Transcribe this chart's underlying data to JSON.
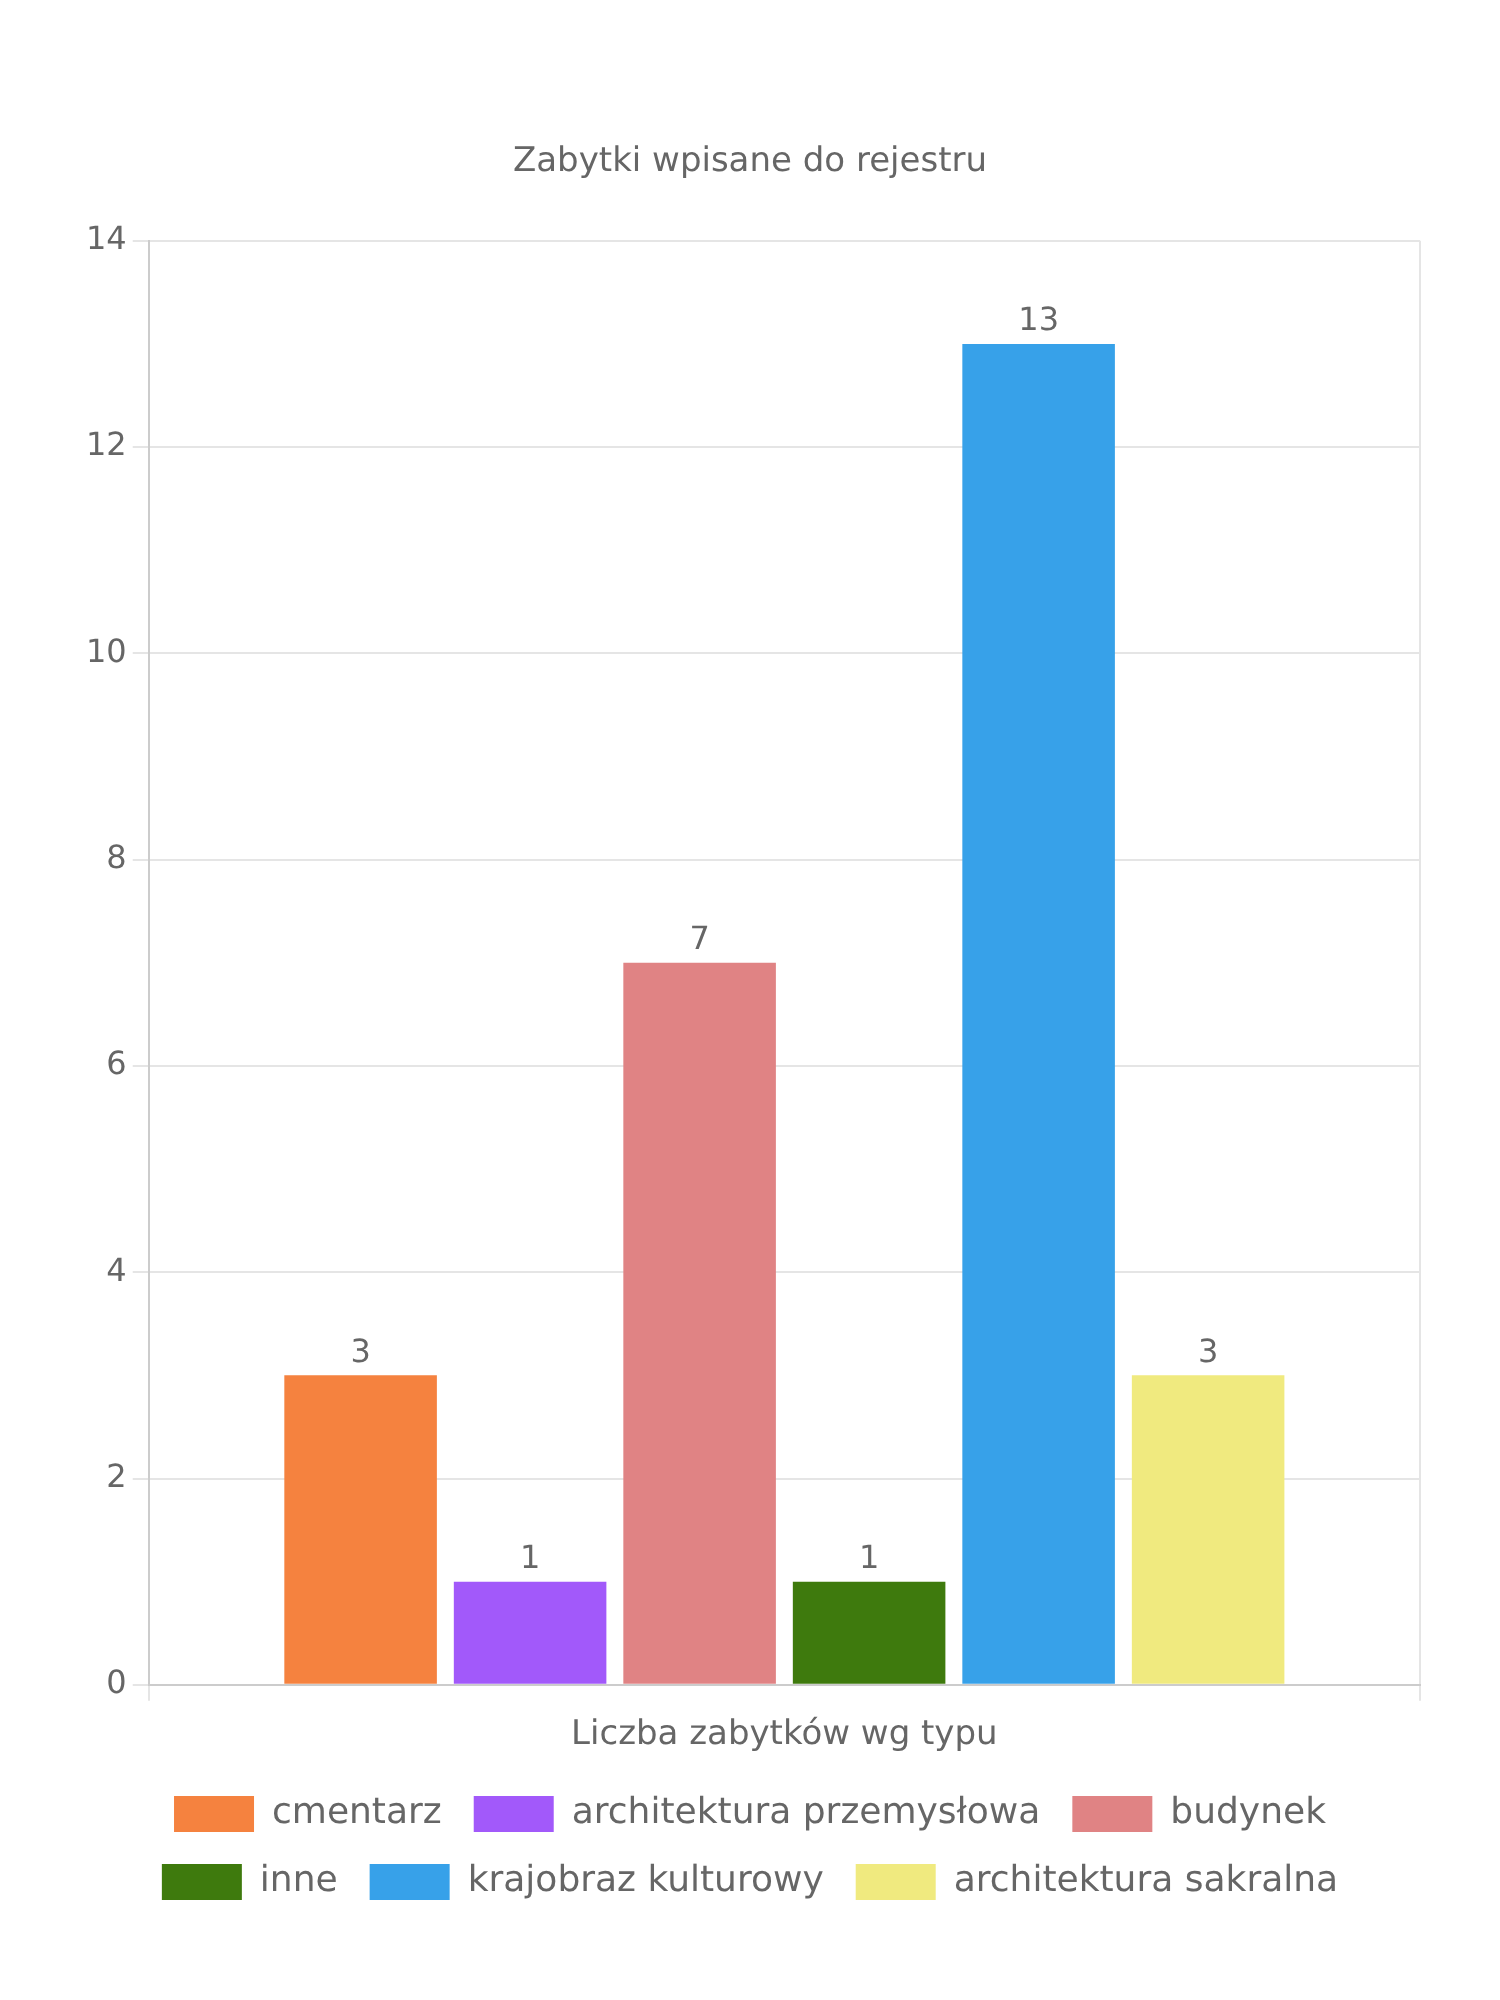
{
  "chart_data": {
    "type": "bar",
    "title": "Zabytki wpisane do rejestru",
    "xlabel": "Liczba zabytków wg typu",
    "categories": [
      null
    ],
    "series": [
      {
        "name": "cmentarz",
        "color": "#f5823f",
        "values": [
          3
        ]
      },
      {
        "name": "architektura przemysłowa",
        "color": "#a259fa",
        "values": [
          1
        ]
      },
      {
        "name": "budynek",
        "color": "#e08384",
        "values": [
          7
        ]
      },
      {
        "name": "inne",
        "color": "#3e7a0d",
        "values": [
          1
        ]
      },
      {
        "name": "krajobraz kulturowy",
        "color": "#37a1e9",
        "values": [
          13
        ]
      },
      {
        "name": "architektura sakralna",
        "color": "#f0ea7f",
        "values": [
          3
        ]
      }
    ],
    "ylim": [
      0,
      14
    ],
    "yticks": [
      0,
      2,
      4,
      6,
      8,
      10,
      12,
      14
    ],
    "grid": true,
    "legend": "bottom",
    "data_labels": true
  }
}
